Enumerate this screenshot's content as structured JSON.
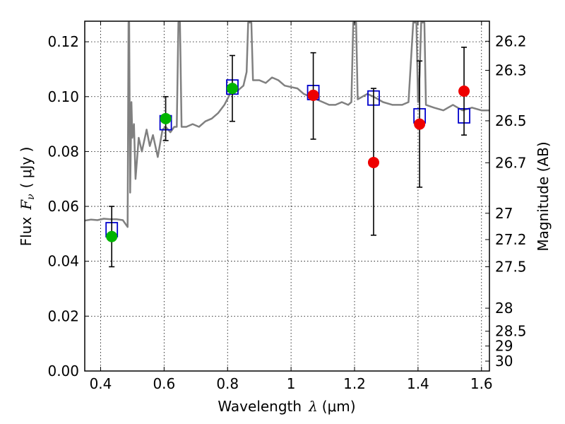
{
  "chart_data": {
    "type": "scatter",
    "xlabel": "Wavelength",
    "xlabel_symbol": "λ",
    "xlabel_unit": "(μm)",
    "ylabel": "Flux",
    "ylabel_symbol": "F",
    "ylabel_subscript": "ν",
    "ylabel_unit": "( μJy )",
    "y2label": "Magnitude (AB)",
    "xlim": [
      0.35,
      1.625
    ],
    "ylim": [
      0.0,
      0.1275
    ],
    "x_ticks": [
      0.4,
      0.6,
      0.8,
      1.0,
      1.2,
      1.4,
      1.6
    ],
    "x_tick_labels": [
      "0.4",
      "0.6",
      "0.8",
      "1",
      "1.2",
      "1.4",
      "1.6"
    ],
    "y_ticks": [
      0.0,
      0.02,
      0.04,
      0.06,
      0.08,
      0.1,
      0.12
    ],
    "y_tick_labels": [
      "0.00",
      "0.02",
      "0.04",
      "0.06",
      "0.08",
      "0.10",
      "0.12"
    ],
    "y2_ticks": [
      {
        "flux": 0.1202,
        "label": "26.2"
      },
      {
        "flux": 0.1096,
        "label": "26.3"
      },
      {
        "flux": 0.0912,
        "label": "26.5"
      },
      {
        "flux": 0.0759,
        "label": "26.7"
      },
      {
        "flux": 0.0575,
        "label": "27"
      },
      {
        "flux": 0.0479,
        "label": "27.2"
      },
      {
        "flux": 0.038,
        "label": "27.5"
      },
      {
        "flux": 0.0229,
        "label": "28"
      },
      {
        "flux": 0.0145,
        "label": "28.5"
      },
      {
        "flux": 0.0091,
        "label": "29"
      },
      {
        "flux": 0.0036,
        "label": "30"
      }
    ],
    "grid": true,
    "colors": {
      "spectrum": "#808080",
      "model_box": "#0000cc",
      "obs_green": "#00b400",
      "obs_red": "#ee0000",
      "errorbar": "#000000"
    },
    "spectrum": [
      [
        0.35,
        0.0548
      ],
      [
        0.37,
        0.0552
      ],
      [
        0.39,
        0.055
      ],
      [
        0.41,
        0.0555
      ],
      [
        0.43,
        0.0553
      ],
      [
        0.45,
        0.0553
      ],
      [
        0.47,
        0.055
      ],
      [
        0.485,
        0.0525
      ],
      [
        0.488,
        0.127
      ],
      [
        0.49,
        0.127
      ],
      [
        0.493,
        0.065
      ],
      [
        0.497,
        0.098
      ],
      [
        0.5,
        0.085
      ],
      [
        0.505,
        0.09
      ],
      [
        0.51,
        0.07
      ],
      [
        0.52,
        0.085
      ],
      [
        0.53,
        0.08
      ],
      [
        0.545,
        0.088
      ],
      [
        0.555,
        0.082
      ],
      [
        0.565,
        0.086
      ],
      [
        0.58,
        0.078
      ],
      [
        0.595,
        0.088
      ],
      [
        0.605,
        0.089
      ],
      [
        0.62,
        0.087
      ],
      [
        0.632,
        0.089
      ],
      [
        0.64,
        0.089
      ],
      [
        0.645,
        0.127
      ],
      [
        0.65,
        0.127
      ],
      [
        0.655,
        0.089
      ],
      [
        0.67,
        0.089
      ],
      [
        0.69,
        0.09
      ],
      [
        0.71,
        0.089
      ],
      [
        0.73,
        0.091
      ],
      [
        0.75,
        0.092
      ],
      [
        0.77,
        0.094
      ],
      [
        0.79,
        0.097
      ],
      [
        0.81,
        0.1015
      ],
      [
        0.83,
        0.102
      ],
      [
        0.85,
        0.104
      ],
      [
        0.86,
        0.109
      ],
      [
        0.865,
        0.127
      ],
      [
        0.875,
        0.127
      ],
      [
        0.88,
        0.106
      ],
      [
        0.9,
        0.106
      ],
      [
        0.92,
        0.105
      ],
      [
        0.94,
        0.107
      ],
      [
        0.96,
        0.106
      ],
      [
        0.98,
        0.104
      ],
      [
        1.0,
        0.1035
      ],
      [
        1.02,
        0.103
      ],
      [
        1.04,
        0.101
      ],
      [
        1.06,
        0.1
      ],
      [
        1.08,
        0.099
      ],
      [
        1.1,
        0.098
      ],
      [
        1.12,
        0.097
      ],
      [
        1.14,
        0.097
      ],
      [
        1.16,
        0.098
      ],
      [
        1.18,
        0.097
      ],
      [
        1.19,
        0.098
      ],
      [
        1.196,
        0.127
      ],
      [
        1.205,
        0.127
      ],
      [
        1.21,
        0.099
      ],
      [
        1.24,
        0.101
      ],
      [
        1.26,
        0.1
      ],
      [
        1.29,
        0.098
      ],
      [
        1.32,
        0.097
      ],
      [
        1.35,
        0.097
      ],
      [
        1.37,
        0.098
      ],
      [
        1.385,
        0.127
      ],
      [
        1.395,
        0.127
      ],
      [
        1.4,
        0.098
      ],
      [
        1.405,
        0.108
      ],
      [
        1.41,
        0.127
      ],
      [
        1.42,
        0.127
      ],
      [
        1.425,
        0.097
      ],
      [
        1.45,
        0.096
      ],
      [
        1.48,
        0.095
      ],
      [
        1.51,
        0.097
      ],
      [
        1.54,
        0.095
      ],
      [
        1.57,
        0.096
      ],
      [
        1.6,
        0.095
      ],
      [
        1.625,
        0.095
      ]
    ],
    "model_boxes": [
      {
        "x": 0.435,
        "y": 0.0515
      },
      {
        "x": 0.605,
        "y": 0.0905
      },
      {
        "x": 0.815,
        "y": 0.1035
      },
      {
        "x": 1.07,
        "y": 0.1015
      },
      {
        "x": 1.26,
        "y": 0.0995
      },
      {
        "x": 1.405,
        "y": 0.093
      },
      {
        "x": 1.545,
        "y": 0.093
      }
    ],
    "observations": [
      {
        "x": 0.435,
        "y": 0.049,
        "err_lo": 0.038,
        "err_hi": 0.06,
        "color": "green"
      },
      {
        "x": 0.605,
        "y": 0.092,
        "err_lo": 0.084,
        "err_hi": 0.1,
        "color": "green"
      },
      {
        "x": 0.815,
        "y": 0.103,
        "err_lo": 0.091,
        "err_hi": 0.115,
        "color": "green"
      },
      {
        "x": 1.07,
        "y": 0.1005,
        "err_lo": 0.0845,
        "err_hi": 0.116,
        "color": "red"
      },
      {
        "x": 1.26,
        "y": 0.076,
        "err_lo": 0.0495,
        "err_hi": 0.103,
        "color": "red"
      },
      {
        "x": 1.405,
        "y": 0.09,
        "err_lo": 0.067,
        "err_hi": 0.113,
        "color": "red"
      },
      {
        "x": 1.545,
        "y": 0.102,
        "err_lo": 0.086,
        "err_hi": 0.118,
        "color": "red"
      }
    ]
  }
}
